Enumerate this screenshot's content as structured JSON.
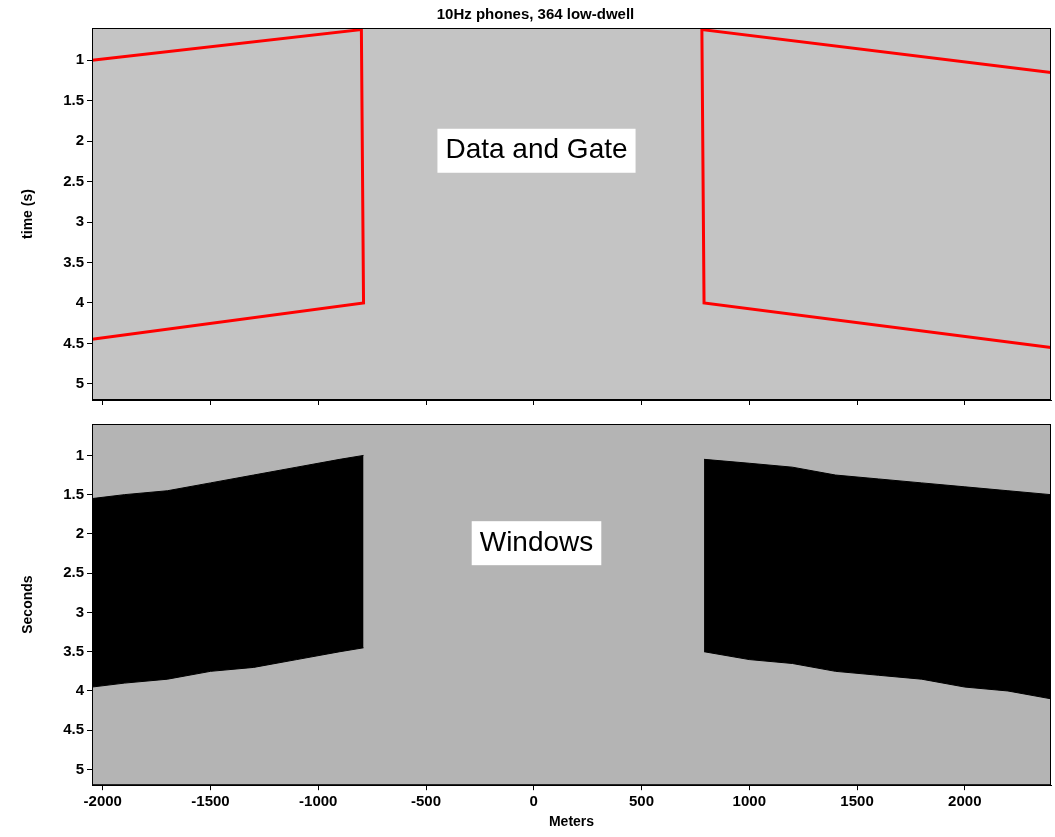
{
  "chart_data": [
    {
      "type": "line",
      "title": "10Hz phones, 364 low-dwell",
      "annotation": "Data and Gate",
      "y_label": "time (s)",
      "xlim": [
        -2050,
        2400
      ],
      "xticks": [
        -2000,
        -1500,
        -1000,
        -500,
        0,
        500,
        1000,
        1500,
        2000
      ],
      "ylim": [
        5.2,
        0.6
      ],
      "yticks": [
        1,
        1.5,
        2,
        2.5,
        3,
        3.5,
        4,
        4.5,
        5
      ],
      "tick_labels": "y",
      "grid": false,
      "color": "#ff0000",
      "gates": [
        {
          "x": [
            -2050,
            -800,
            -790,
            -2050
          ],
          "y": [
            1.0,
            0.62,
            4.0,
            4.45
          ]
        },
        {
          "x": [
            2400,
            780,
            790,
            2400
          ],
          "y": [
            1.15,
            0.62,
            4.0,
            4.55
          ]
        }
      ]
    },
    {
      "type": "line",
      "annotation": "Windows",
      "x_label": "Meters",
      "y_label": "Seconds",
      "xlim": [
        -2050,
        2400
      ],
      "xticks": [
        -2000,
        -1500,
        -1000,
        -500,
        0,
        500,
        1000,
        1500,
        2000
      ],
      "ylim": [
        5.2,
        0.6
      ],
      "yticks": [
        1,
        1.5,
        2,
        2.5,
        3,
        3.5,
        4,
        4.5,
        5
      ],
      "grid": false,
      "color": "#000000",
      "windows": [
        {
          "x": [
            -2050,
            -1900,
            -1700,
            -1500,
            -1300,
            -1100,
            -900,
            -790
          ],
          "top": [
            1.55,
            1.5,
            1.45,
            1.35,
            1.25,
            1.15,
            1.05,
            1.0
          ],
          "bottom": [
            3.95,
            3.9,
            3.85,
            3.75,
            3.7,
            3.6,
            3.5,
            3.45
          ]
        },
        {
          "x": [
            790,
            1000,
            1200,
            1400,
            1600,
            1800,
            2000,
            2200,
            2400
          ],
          "top": [
            1.05,
            1.1,
            1.15,
            1.25,
            1.3,
            1.35,
            1.4,
            1.45,
            1.5
          ],
          "bottom": [
            3.5,
            3.6,
            3.65,
            3.75,
            3.8,
            3.85,
            3.95,
            4.0,
            4.1
          ]
        }
      ]
    }
  ]
}
